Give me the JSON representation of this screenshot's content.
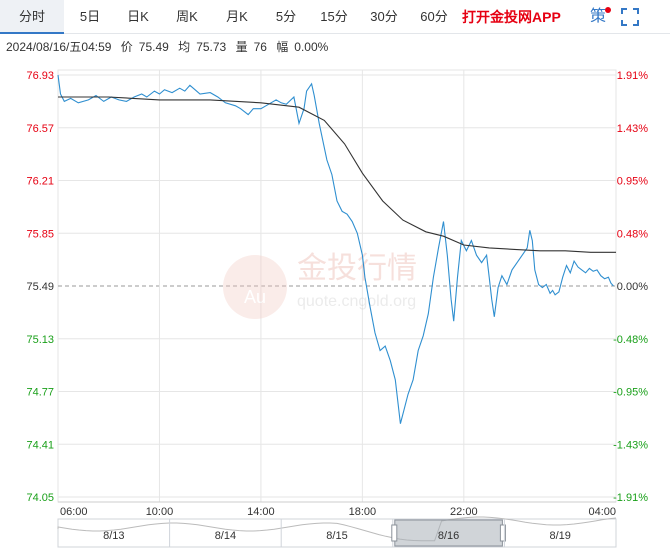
{
  "tabs": [
    {
      "label": "分时",
      "active": true
    },
    {
      "label": "5日"
    },
    {
      "label": "日K"
    },
    {
      "label": "周K"
    },
    {
      "label": "月K"
    },
    {
      "label": "5分"
    },
    {
      "label": "15分"
    },
    {
      "label": "30分"
    },
    {
      "label": "60分"
    }
  ],
  "app_link": "打开金投网APP",
  "strategy_label": "策",
  "info": {
    "datetime": "2024/08/16/五04:59",
    "price_label": "价",
    "price": "75.49",
    "avg_label": "均",
    "avg": "75.73",
    "vol_label": "量",
    "vol": "76",
    "change_label": "幅",
    "change": "0.00%"
  },
  "watermark": {
    "cn": "金投行情",
    "url": "quote.cngold.org",
    "badge": "Au"
  },
  "colors": {
    "price_line": "#2f8fd0",
    "avg_line": "#333333",
    "up": "#e60012",
    "down": "#1aa01a",
    "base": "#333333",
    "grid": "#e6e6e6"
  },
  "chart_data": {
    "type": "line",
    "x_tick_labels": [
      "06:00",
      "10:00",
      "14:00",
      "18:00",
      "22:00",
      "04:00"
    ],
    "x_tick_hours": [
      0,
      4,
      8,
      12,
      16,
      22
    ],
    "session_hours": 22,
    "y_tick_labels": [
      "76.93",
      "76.57",
      "76.21",
      "75.85",
      "75.49",
      "75.13",
      "74.77",
      "74.41",
      "74.05"
    ],
    "right_tick_labels": [
      "1.91%",
      "1.43%",
      "0.95%",
      "0.48%",
      "0.00%",
      "-0.48%",
      "-0.95%",
      "-1.43%",
      "-1.91%"
    ],
    "ylim": [
      74.05,
      76.93
    ],
    "prev_close": 75.49,
    "series": [
      {
        "role": "price",
        "points": [
          [
            0,
            76.93
          ],
          [
            0.1,
            76.8
          ],
          [
            0.25,
            76.75
          ],
          [
            0.5,
            76.77
          ],
          [
            0.8,
            76.74
          ],
          [
            1.2,
            76.76
          ],
          [
            1.5,
            76.79
          ],
          [
            1.8,
            76.75
          ],
          [
            2.1,
            76.78
          ],
          [
            2.4,
            76.76
          ],
          [
            2.7,
            76.75
          ],
          [
            3.0,
            76.78
          ],
          [
            3.3,
            76.8
          ],
          [
            3.5,
            76.78
          ],
          [
            3.8,
            76.82
          ],
          [
            4.0,
            76.8
          ],
          [
            4.2,
            76.83
          ],
          [
            4.5,
            76.81
          ],
          [
            4.8,
            76.84
          ],
          [
            5.0,
            76.82
          ],
          [
            5.2,
            76.86
          ],
          [
            5.4,
            76.83
          ],
          [
            5.6,
            76.8
          ],
          [
            6.0,
            76.81
          ],
          [
            6.3,
            76.78
          ],
          [
            6.6,
            76.74
          ],
          [
            7.0,
            76.72
          ],
          [
            7.2,
            76.7
          ],
          [
            7.5,
            76.66
          ],
          [
            7.7,
            76.7
          ],
          [
            8.0,
            76.7
          ],
          [
            8.3,
            76.73
          ],
          [
            8.6,
            76.76
          ],
          [
            8.8,
            76.74
          ],
          [
            9.0,
            76.73
          ],
          [
            9.3,
            76.78
          ],
          [
            9.5,
            76.6
          ],
          [
            9.7,
            76.7
          ],
          [
            9.8,
            76.82
          ],
          [
            10.0,
            76.87
          ],
          [
            10.1,
            76.79
          ],
          [
            10.3,
            76.6
          ],
          [
            10.6,
            76.35
          ],
          [
            10.8,
            76.25
          ],
          [
            11.0,
            76.07
          ],
          [
            11.2,
            76.0
          ],
          [
            11.4,
            75.98
          ],
          [
            11.6,
            75.93
          ],
          [
            11.8,
            75.85
          ],
          [
            12.0,
            75.7
          ],
          [
            12.1,
            75.55
          ],
          [
            12.3,
            75.35
          ],
          [
            12.5,
            75.17
          ],
          [
            12.7,
            75.05
          ],
          [
            12.9,
            75.08
          ],
          [
            13.1,
            74.98
          ],
          [
            13.3,
            74.85
          ],
          [
            13.5,
            74.55
          ],
          [
            13.65,
            74.65
          ],
          [
            13.8,
            74.75
          ],
          [
            14.0,
            74.85
          ],
          [
            14.2,
            75.05
          ],
          [
            14.4,
            75.15
          ],
          [
            14.6,
            75.3
          ],
          [
            14.8,
            75.55
          ],
          [
            15.0,
            75.75
          ],
          [
            15.2,
            75.93
          ],
          [
            15.35,
            75.7
          ],
          [
            15.5,
            75.4
          ],
          [
            15.6,
            75.25
          ],
          [
            15.75,
            75.55
          ],
          [
            15.9,
            75.8
          ],
          [
            16.1,
            75.73
          ],
          [
            16.3,
            75.8
          ],
          [
            16.5,
            75.7
          ],
          [
            16.7,
            75.65
          ],
          [
            16.9,
            75.7
          ],
          [
            17.0,
            75.55
          ],
          [
            17.1,
            75.4
          ],
          [
            17.2,
            75.28
          ],
          [
            17.35,
            75.48
          ],
          [
            17.5,
            75.56
          ],
          [
            17.7,
            75.5
          ],
          [
            17.9,
            75.6
          ],
          [
            18.1,
            75.65
          ],
          [
            18.3,
            75.7
          ],
          [
            18.5,
            75.75
          ],
          [
            18.6,
            75.87
          ],
          [
            18.7,
            75.8
          ],
          [
            18.8,
            75.6
          ],
          [
            18.95,
            75.5
          ],
          [
            19.1,
            75.48
          ],
          [
            19.25,
            75.5
          ],
          [
            19.4,
            75.44
          ],
          [
            19.5,
            75.46
          ],
          [
            19.6,
            75.43
          ],
          [
            19.75,
            75.45
          ],
          [
            19.9,
            75.55
          ],
          [
            20.05,
            75.63
          ],
          [
            20.2,
            75.58
          ],
          [
            20.35,
            75.66
          ],
          [
            20.5,
            75.62
          ],
          [
            20.65,
            75.6
          ],
          [
            20.8,
            75.58
          ],
          [
            20.95,
            75.61
          ],
          [
            21.1,
            75.59
          ],
          [
            21.25,
            75.6
          ],
          [
            21.4,
            75.56
          ],
          [
            21.55,
            75.54
          ],
          [
            21.7,
            75.55
          ],
          [
            21.8,
            75.51
          ],
          [
            21.9,
            75.49
          ]
        ]
      },
      {
        "role": "average",
        "points": [
          [
            0,
            76.78
          ],
          [
            2,
            76.78
          ],
          [
            4,
            76.76
          ],
          [
            6,
            76.76
          ],
          [
            8,
            76.74
          ],
          [
            9.5,
            76.71
          ],
          [
            10.5,
            76.62
          ],
          [
            11.3,
            76.46
          ],
          [
            12,
            76.26
          ],
          [
            12.8,
            76.07
          ],
          [
            13.6,
            75.94
          ],
          [
            14.5,
            75.86
          ],
          [
            15.2,
            75.83
          ],
          [
            16,
            75.77
          ],
          [
            17,
            75.75
          ],
          [
            18,
            75.74
          ],
          [
            19,
            75.73
          ],
          [
            20,
            75.73
          ],
          [
            21,
            75.72
          ],
          [
            22,
            75.72
          ]
        ]
      }
    ]
  },
  "navigator": {
    "dates": [
      "8/13",
      "8/14",
      "8/15",
      "8/16",
      "8/19"
    ],
    "selected": "8/16"
  }
}
